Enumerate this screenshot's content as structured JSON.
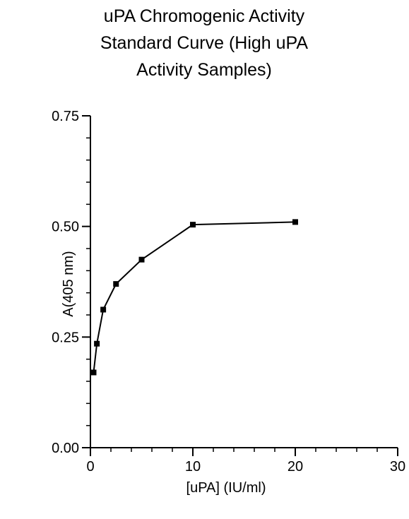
{
  "chart_data": {
    "type": "line",
    "title_lines": [
      "uPA Chromogenic Activity",
      "Standard Curve (High uPA",
      "Activity Samples)"
    ],
    "xlabel": "[uPA] (IU/ml)",
    "ylabel": "A(405 nm)",
    "xlim": [
      0,
      30
    ],
    "ylim": [
      0,
      0.75
    ],
    "x_ticks": [
      {
        "value": 0,
        "label": "0"
      },
      {
        "value": 10,
        "label": "10"
      },
      {
        "value": 20,
        "label": "20"
      },
      {
        "value": 30,
        "label": "30"
      }
    ],
    "y_ticks": [
      {
        "value": 0,
        "label": "0.00"
      },
      {
        "value": 0.25,
        "label": "0.25"
      },
      {
        "value": 0.5,
        "label": "0.50"
      },
      {
        "value": 0.75,
        "label": "0.75"
      }
    ],
    "x_minor_step": 2,
    "y_minor_step": 0.05,
    "grid": false,
    "marker": "square",
    "line_color": "#000000",
    "series": [
      {
        "points": [
          {
            "x": 0.31,
            "y": 0.17
          },
          {
            "x": 0.63,
            "y": 0.235
          },
          {
            "x": 1.25,
            "y": 0.312
          },
          {
            "x": 2.5,
            "y": 0.37
          },
          {
            "x": 5,
            "y": 0.425
          },
          {
            "x": 10,
            "y": 0.504
          },
          {
            "x": 20,
            "y": 0.51
          }
        ]
      }
    ]
  }
}
